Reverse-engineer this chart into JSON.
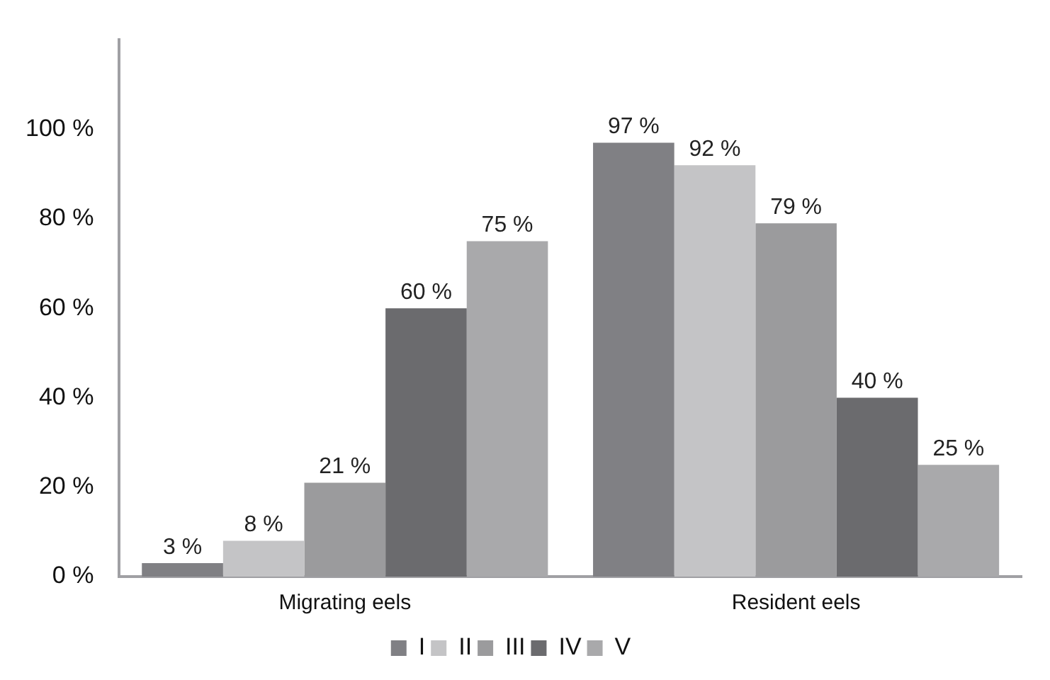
{
  "chart_data": {
    "type": "bar",
    "categories": [
      "Migrating eels",
      "Resident eels"
    ],
    "series": [
      {
        "name": "I",
        "color": "#808084",
        "values": [
          3,
          97
        ],
        "value_labels": [
          "3 %",
          "97 %"
        ]
      },
      {
        "name": "II",
        "color": "#c4c4c6",
        "values": [
          8,
          92
        ],
        "value_labels": [
          "8 %",
          "92 %"
        ]
      },
      {
        "name": "III",
        "color": "#9b9b9d",
        "values": [
          21,
          79
        ],
        "value_labels": [
          "21 %",
          "79 %"
        ]
      },
      {
        "name": "IV",
        "color": "#6b6b6e",
        "values": [
          60,
          40
        ],
        "value_labels": [
          "60 %",
          "40 %"
        ]
      },
      {
        "name": "V",
        "color": "#a9a9ab",
        "values": [
          75,
          25
        ],
        "value_labels": [
          "75 %",
          "25 %"
        ]
      }
    ],
    "ylim": [
      0,
      120
    ],
    "yticks": [
      {
        "value": 0,
        "label": "0 %"
      },
      {
        "value": 20,
        "label": "20 %"
      },
      {
        "value": 40,
        "label": "40 %"
      },
      {
        "value": 60,
        "label": "60 %"
      },
      {
        "value": 80,
        "label": "80 %"
      },
      {
        "value": 100,
        "label": "100 %"
      }
    ],
    "grid": false,
    "legend": "bottom"
  }
}
